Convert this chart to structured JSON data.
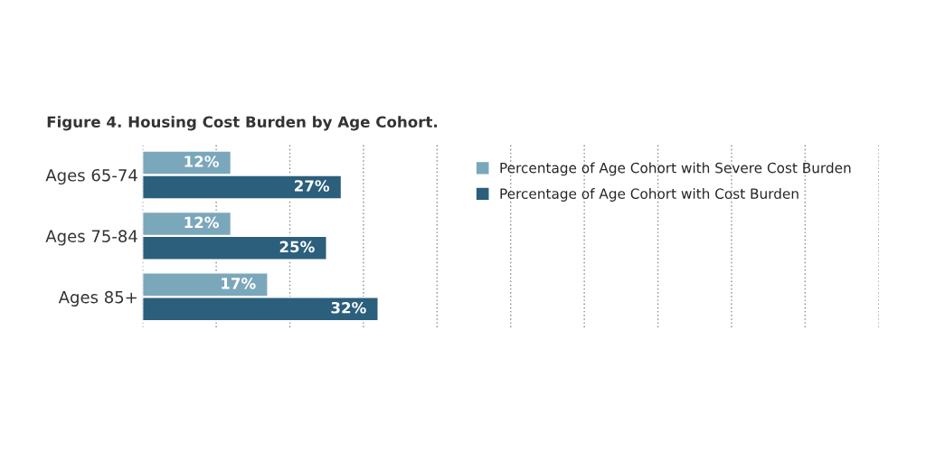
{
  "chart_data": {
    "type": "bar",
    "orientation": "horizontal",
    "title": "Figure 4. Housing Cost Burden by Age Cohort.",
    "categories": [
      "Ages 65-74",
      "Ages 75-84",
      "Ages 85+"
    ],
    "series": [
      {
        "name": "Percentage of Age Cohort with Severe Cost Burden",
        "color": "#7ba7bb",
        "values": [
          12,
          12,
          17
        ],
        "value_labels": [
          "12%",
          "12%",
          "17%"
        ]
      },
      {
        "name": "Percentage of Age Cohort with Cost Burden",
        "color": "#2b5f7c",
        "values": [
          27,
          25,
          32
        ],
        "value_labels": [
          "27%",
          "25%",
          "32%"
        ]
      }
    ],
    "xlim": [
      0,
      100
    ],
    "xticks": [
      {
        "value": 0,
        "label": null
      },
      {
        "value": 10,
        "label": null
      },
      {
        "value": 20,
        "label": null
      },
      {
        "value": 30,
        "label": null
      },
      {
        "value": 40,
        "label": null
      },
      {
        "value": 50,
        "label": null
      },
      {
        "value": 60,
        "label": null
      },
      {
        "value": 70,
        "label": null
      },
      {
        "value": 80,
        "label": null
      },
      {
        "value": 90,
        "label": null
      },
      {
        "value": 100,
        "label": null
      }
    ],
    "grid": "x",
    "legend": "top right",
    "tick_labels": "y"
  }
}
